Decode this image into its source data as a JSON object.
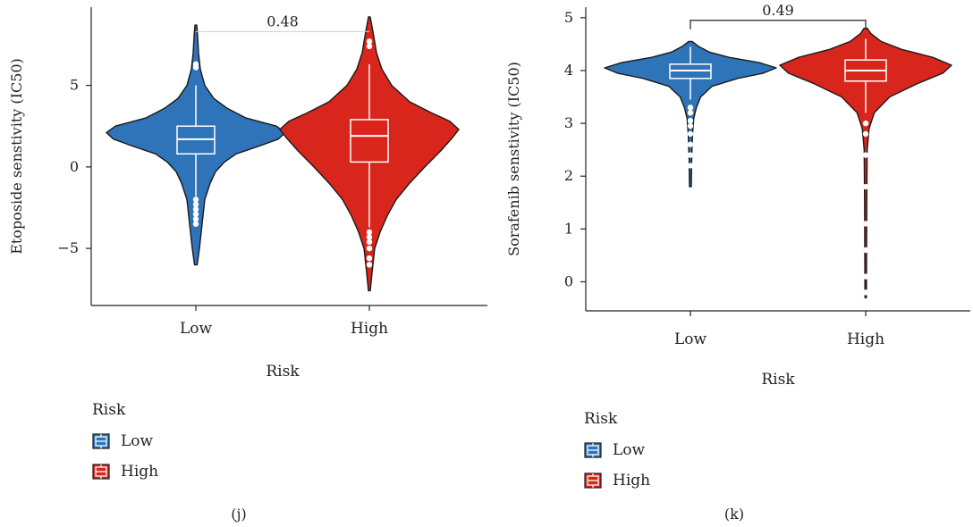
{
  "colors": {
    "low": "#2f73b8",
    "high": "#d9261c",
    "outline": "#1a1a1a"
  },
  "chart_data": [
    {
      "type": "violin",
      "caption": "(j)",
      "title": "",
      "xlabel": "Risk",
      "ylabel": "Etoposide senstivity (IC50)",
      "ylim": [
        -8.5,
        9.8
      ],
      "yticks": [
        "5",
        "0",
        "−5"
      ],
      "ytick_values": [
        5,
        0,
        -5
      ],
      "categories": [
        "Low",
        "High"
      ],
      "legend": {
        "title": "Risk",
        "entries": [
          "Low",
          "High"
        ]
      },
      "comparison": {
        "label": "0.48",
        "y": 8.3
      },
      "series": [
        {
          "name": "Low",
          "min": -6.0,
          "max": 8.7,
          "box": {
            "q1": 0.8,
            "median": 1.7,
            "q3": 2.5
          },
          "whisker_low": -1.8,
          "whisker_high": 5.0,
          "outliers": [
            6.1,
            6.3,
            -2.0,
            -2.3,
            -2.6,
            -2.9,
            -3.2,
            -3.5
          ],
          "profile": [
            [
              -6.0,
              0.015
            ],
            [
              -5.0,
              0.04
            ],
            [
              -4.0,
              0.06
            ],
            [
              -3.0,
              0.08
            ],
            [
              -2.0,
              0.1
            ],
            [
              -1.0,
              0.16
            ],
            [
              -0.3,
              0.22
            ],
            [
              0.3,
              0.32
            ],
            [
              0.8,
              0.45
            ],
            [
              1.3,
              0.72
            ],
            [
              1.7,
              0.92
            ],
            [
              2.1,
              1.0
            ],
            [
              2.5,
              0.9
            ],
            [
              3.0,
              0.56
            ],
            [
              3.6,
              0.35
            ],
            [
              4.2,
              0.2
            ],
            [
              5.0,
              0.1
            ],
            [
              6.0,
              0.05
            ],
            [
              7.0,
              0.03
            ],
            [
              8.0,
              0.02
            ],
            [
              8.7,
              0.01
            ]
          ]
        },
        {
          "name": "High",
          "min": -7.6,
          "max": 9.2,
          "box": {
            "q1": 0.3,
            "median": 1.9,
            "q3": 2.9
          },
          "whisker_low": -3.7,
          "whisker_high": 6.3,
          "outliers": [
            7.4,
            7.7,
            -4.0,
            -4.3,
            -4.6,
            -5.0,
            -5.6,
            -6.0
          ],
          "profile": [
            [
              -7.6,
              0.01
            ],
            [
              -6.5,
              0.03
            ],
            [
              -5.0,
              0.06
            ],
            [
              -4.0,
              0.12
            ],
            [
              -3.0,
              0.2
            ],
            [
              -2.0,
              0.3
            ],
            [
              -1.0,
              0.45
            ],
            [
              0.0,
              0.62
            ],
            [
              1.0,
              0.8
            ],
            [
              1.8,
              0.93
            ],
            [
              2.3,
              1.0
            ],
            [
              2.8,
              0.9
            ],
            [
              3.3,
              0.7
            ],
            [
              4.0,
              0.45
            ],
            [
              5.0,
              0.25
            ],
            [
              6.0,
              0.14
            ],
            [
              7.0,
              0.08
            ],
            [
              8.0,
              0.05
            ],
            [
              9.2,
              0.01
            ]
          ]
        }
      ]
    },
    {
      "type": "violin",
      "caption": "(k)",
      "title": "",
      "xlabel": "Risk",
      "ylabel": "Sorafenib senstivity (IC50)",
      "ylim": [
        -0.55,
        5.2
      ],
      "yticks": [
        "5",
        "4",
        "3",
        "2",
        "1",
        "0"
      ],
      "ytick_values": [
        5,
        4,
        3,
        2,
        1,
        0
      ],
      "categories": [
        "Low",
        "High"
      ],
      "legend": {
        "title": "Risk",
        "entries": [
          "Low",
          "High"
        ]
      },
      "comparison": {
        "label": "0.49",
        "y": 4.95
      },
      "series": [
        {
          "name": "Low",
          "min": 1.8,
          "max": 4.55,
          "box": {
            "q1": 3.85,
            "median": 4.0,
            "q3": 4.12
          },
          "whisker_low": 3.45,
          "whisker_high": 4.45,
          "outliers": [
            3.3,
            3.2,
            3.05,
            2.95,
            2.8,
            2.6,
            2.4,
            2.2
          ],
          "profile": [
            [
              1.8,
              0.01
            ],
            [
              2.3,
              0.015
            ],
            [
              2.8,
              0.025
            ],
            [
              3.1,
              0.04
            ],
            [
              3.3,
              0.07
            ],
            [
              3.5,
              0.12
            ],
            [
              3.7,
              0.25
            ],
            [
              3.85,
              0.55
            ],
            [
              3.95,
              0.85
            ],
            [
              4.05,
              1.0
            ],
            [
              4.15,
              0.8
            ],
            [
              4.25,
              0.45
            ],
            [
              4.35,
              0.22
            ],
            [
              4.45,
              0.1
            ],
            [
              4.55,
              0.02
            ]
          ]
        },
        {
          "name": "High",
          "min": -0.3,
          "max": 4.8,
          "box": {
            "q1": 3.8,
            "median": 4.0,
            "q3": 4.2
          },
          "whisker_low": 3.2,
          "whisker_high": 4.6,
          "outliers": [
            3.0,
            2.8,
            2.4,
            1.8,
            1.1,
            0.6,
            0.1,
            -0.2
          ],
          "profile": [
            [
              -0.3,
              0.008
            ],
            [
              0.5,
              0.01
            ],
            [
              1.5,
              0.012
            ],
            [
              2.5,
              0.018
            ],
            [
              2.9,
              0.04
            ],
            [
              3.2,
              0.1
            ],
            [
              3.5,
              0.28
            ],
            [
              3.75,
              0.6
            ],
            [
              3.95,
              0.9
            ],
            [
              4.1,
              1.0
            ],
            [
              4.25,
              0.78
            ],
            [
              4.4,
              0.42
            ],
            [
              4.55,
              0.18
            ],
            [
              4.7,
              0.06
            ],
            [
              4.8,
              0.02
            ]
          ]
        }
      ]
    }
  ]
}
